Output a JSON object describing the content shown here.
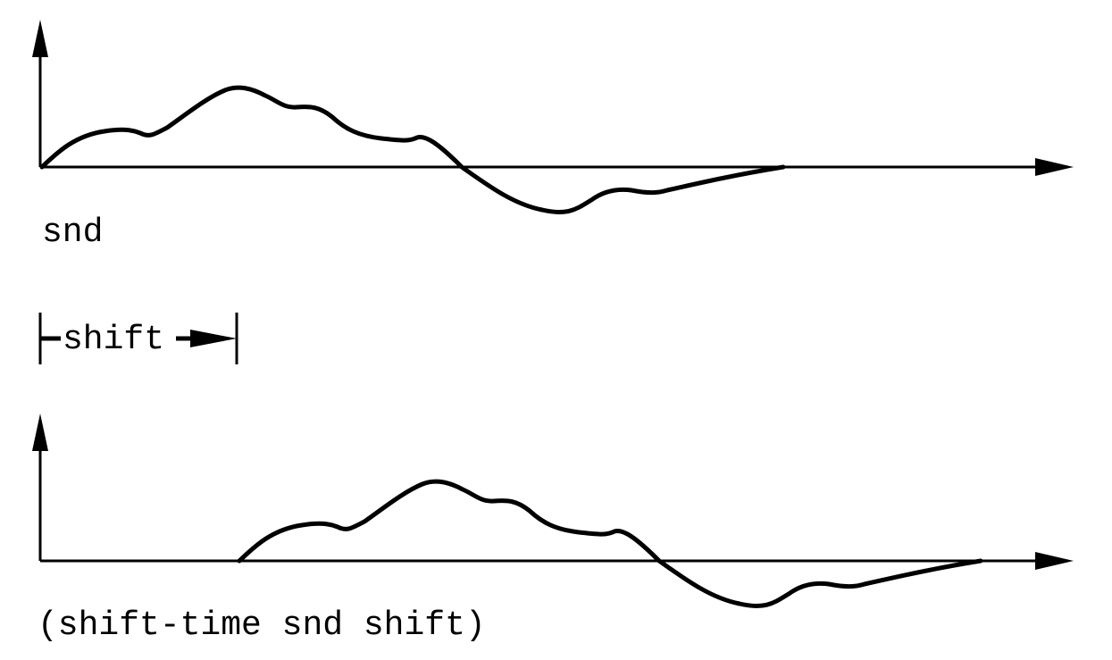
{
  "labels": {
    "top_signal": "snd",
    "shift_amount": "shift",
    "bottom_expression": "(shift-time snd shift)"
  },
  "colors": {
    "ink": "#000000",
    "background": "#ffffff"
  }
}
